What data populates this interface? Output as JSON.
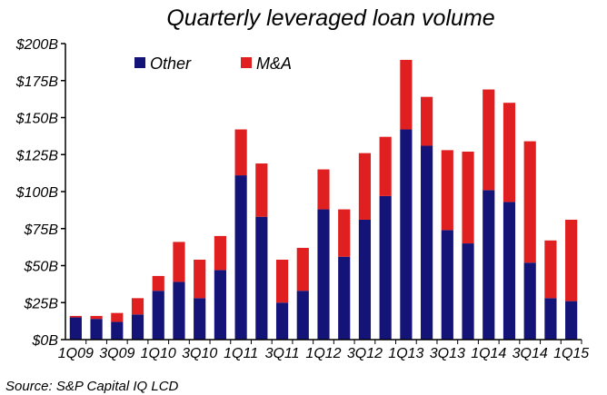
{
  "chart_data": {
    "type": "bar",
    "stacked": true,
    "title": "Quarterly leveraged loan volume",
    "xlabel": "",
    "ylabel": "",
    "ylim": [
      0,
      200
    ],
    "y_ticks": [
      "$0B",
      "$25B",
      "$50B",
      "$75B",
      "$100B",
      "$125B",
      "$150B",
      "$175B",
      "$200B"
    ],
    "x_tick_labels": [
      "1Q09",
      "3Q09",
      "1Q10",
      "3Q10",
      "1Q11",
      "3Q11",
      "1Q12",
      "3Q12",
      "1Q13",
      "3Q13",
      "1Q14",
      "3Q14",
      "1Q15"
    ],
    "categories": [
      "1Q09",
      "2Q09",
      "3Q09",
      "4Q09",
      "1Q10",
      "2Q10",
      "3Q10",
      "4Q10",
      "1Q11",
      "2Q11",
      "3Q11",
      "4Q11",
      "1Q12",
      "2Q12",
      "3Q12",
      "4Q12",
      "1Q13",
      "2Q13",
      "3Q13",
      "4Q13",
      "1Q14",
      "2Q14",
      "3Q14",
      "4Q14",
      "1Q15"
    ],
    "series": [
      {
        "name": "Other",
        "color": "#141478",
        "values": [
          15,
          14,
          12,
          17,
          33,
          39,
          28,
          47,
          111,
          83,
          25,
          33,
          88,
          56,
          81,
          97,
          142,
          131,
          74,
          65,
          101,
          93,
          52,
          28,
          26
        ]
      },
      {
        "name": "M&A",
        "color": "#e02020",
        "values": [
          1,
          2,
          6,
          11,
          10,
          27,
          26,
          23,
          31,
          36,
          29,
          29,
          27,
          32,
          45,
          40,
          47,
          33,
          54,
          62,
          68,
          67,
          82,
          39,
          55
        ]
      }
    ],
    "grid": false,
    "legend": "top-left"
  },
  "source": "Source: S&P Capital IQ LCD"
}
